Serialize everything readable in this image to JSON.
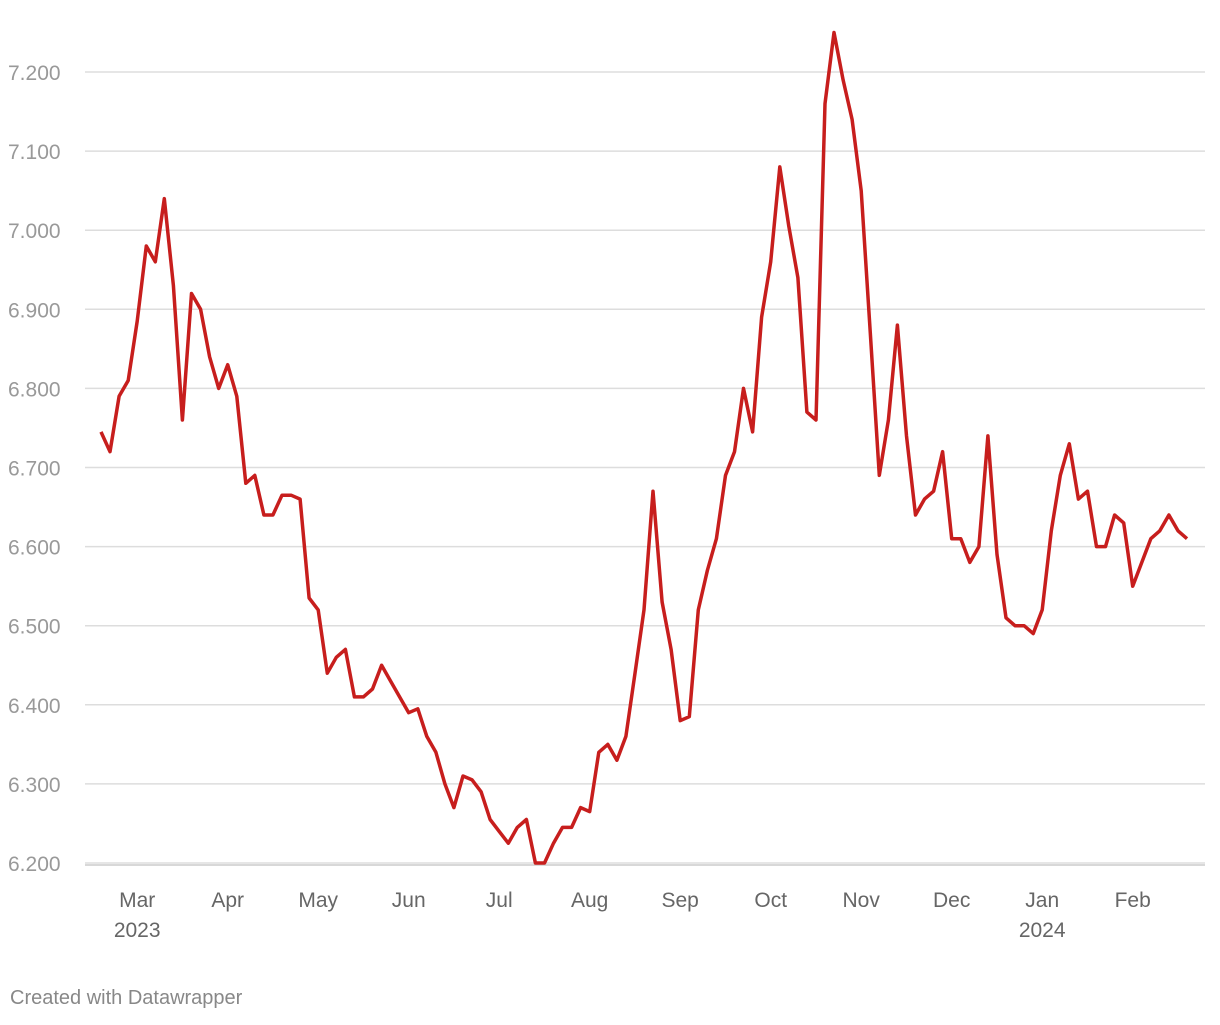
{
  "chart_data": {
    "type": "line",
    "categories": [
      null,
      null,
      null,
      null,
      "Mar\n2023",
      null,
      null,
      null,
      null,
      null,
      null,
      null,
      null,
      null,
      "Apr",
      null,
      null,
      null,
      null,
      null,
      null,
      null,
      null,
      null,
      "May",
      null,
      null,
      null,
      null,
      null,
      null,
      null,
      null,
      null,
      "Jun",
      null,
      null,
      null,
      null,
      null,
      null,
      null,
      null,
      null,
      "Jul",
      null,
      null,
      null,
      null,
      null,
      null,
      null,
      null,
      null,
      "Aug",
      null,
      null,
      null,
      null,
      null,
      null,
      null,
      null,
      null,
      "Sep",
      null,
      null,
      null,
      null,
      null,
      null,
      null,
      null,
      null,
      "Oct",
      null,
      null,
      null,
      null,
      null,
      null,
      null,
      null,
      null,
      "Nov",
      null,
      null,
      null,
      null,
      null,
      null,
      null,
      null,
      null,
      "Dec",
      null,
      null,
      null,
      null,
      null,
      null,
      null,
      null,
      null,
      "Jan\n2024",
      null,
      null,
      null,
      null,
      null,
      null,
      null,
      null,
      null,
      "Feb",
      null,
      null,
      null,
      null,
      null,
      null
    ],
    "series": [
      {
        "color": "#c71e1d",
        "values": [
          6.745,
          6.72,
          6.79,
          6.81,
          6.885,
          6.98,
          6.96,
          7.04,
          6.93,
          6.76,
          6.92,
          6.9,
          6.84,
          6.8,
          6.83,
          6.79,
          6.68,
          6.69,
          6.64,
          6.64,
          6.665,
          6.665,
          6.66,
          6.535,
          6.52,
          6.44,
          6.46,
          6.47,
          6.41,
          6.41,
          6.42,
          6.45,
          6.43,
          6.41,
          6.39,
          6.395,
          6.36,
          6.34,
          6.3,
          6.27,
          6.31,
          6.305,
          6.29,
          6.255,
          6.24,
          6.225,
          6.245,
          6.255,
          6.2,
          6.2,
          6.225,
          6.245,
          6.245,
          6.27,
          6.265,
          6.34,
          6.35,
          6.33,
          6.36,
          6.44,
          6.52,
          6.67,
          6.53,
          6.47,
          6.38,
          6.385,
          6.52,
          6.57,
          6.61,
          6.69,
          6.72,
          6.8,
          6.745,
          6.89,
          6.96,
          7.08,
          7.005,
          6.94,
          6.77,
          6.76,
          7.16,
          7.25,
          7.19,
          7.14,
          7.05,
          6.87,
          6.69,
          6.76,
          6.88,
          6.74,
          6.64,
          6.66,
          6.67,
          6.72,
          6.61,
          6.61,
          6.58,
          6.6,
          6.74,
          6.59,
          6.51,
          6.5,
          6.5,
          6.49,
          6.52,
          6.62,
          6.69,
          6.73,
          6.66,
          6.67,
          6.6,
          6.6,
          6.64,
          6.63,
          6.55,
          6.58,
          6.61,
          6.62,
          6.64,
          6.62,
          6.61
        ]
      }
    ],
    "ylim": [
      6.2,
      7.2
    ],
    "yticks": [
      {
        "value": 6.2,
        "label": "6.200"
      },
      {
        "value": 6.3,
        "label": "6.300"
      },
      {
        "value": 6.4,
        "label": "6.400"
      },
      {
        "value": 6.5,
        "label": "6.500"
      },
      {
        "value": 6.6,
        "label": "6.600"
      },
      {
        "value": 6.7,
        "label": "6.700"
      },
      {
        "value": 6.8,
        "label": "6.800"
      },
      {
        "value": 6.9,
        "label": "6.900"
      },
      {
        "value": 7.0,
        "label": "7.000"
      },
      {
        "value": 7.1,
        "label": "7.100"
      },
      {
        "value": 7.2,
        "label": "7.200"
      }
    ],
    "grid": true,
    "footer": "Created with Datawrapper"
  }
}
